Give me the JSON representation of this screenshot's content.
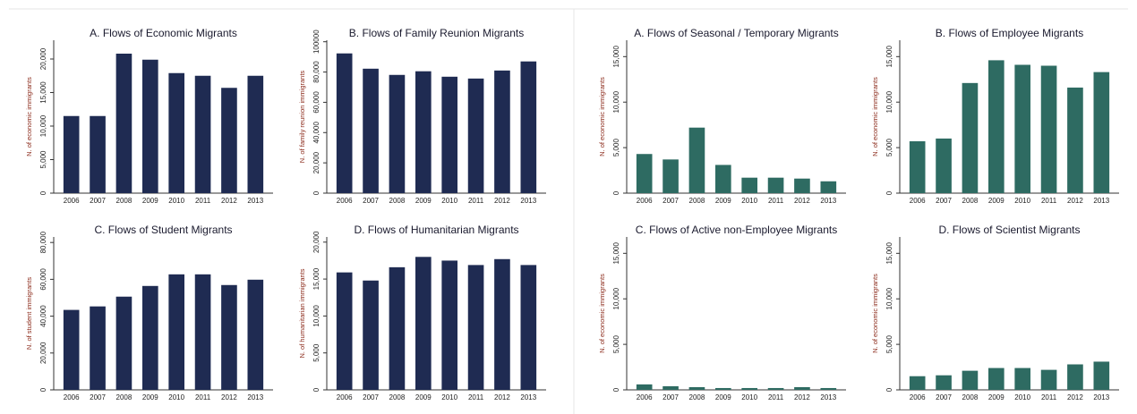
{
  "chart_data": [
    {
      "type": "bar",
      "title": "A. Flows of Economic Migrants",
      "y_label": "N. of economic immigrants",
      "color": "#1f2b52",
      "categories": [
        "2006",
        "2007",
        "2008",
        "2009",
        "2010",
        "2011",
        "2012",
        "2013"
      ],
      "values": [
        11500,
        11500,
        20800,
        19900,
        17900,
        17500,
        15700,
        17500
      ],
      "ylim": [
        0,
        22800
      ],
      "yticks": [
        0,
        {
          "value": 5000,
          "label": "5,000"
        },
        {
          "value": 10000,
          "label": "10,000"
        },
        {
          "value": 15000,
          "label": "15,000"
        },
        {
          "value": 20000,
          "label": "20,000"
        }
      ]
    },
    {
      "type": "bar",
      "title": "B. Flows of Family Reunion Migrants",
      "y_label": "N. of family reunion immigrants",
      "color": "#1f2b52",
      "categories": [
        "2006",
        "2007",
        "2008",
        "2009",
        "2010",
        "2011",
        "2012",
        "2013"
      ],
      "values": [
        92300,
        82200,
        78100,
        80500,
        76900,
        75700,
        81000,
        87000
      ],
      "ylim": [
        0,
        101000
      ],
      "yticks": [
        0,
        {
          "value": 20000,
          "label": "20,000"
        },
        {
          "value": 40000,
          "label": "40,000"
        },
        {
          "value": 60000,
          "label": "60,000"
        },
        {
          "value": 80000,
          "label": "80,000"
        },
        100000
      ]
    },
    {
      "type": "bar",
      "title": "C. Flows of Student Migrants",
      "y_label": "N. of student immigrants",
      "color": "#1f2b52",
      "categories": [
        "2006",
        "2007",
        "2008",
        "2009",
        "2010",
        "2011",
        "2012",
        "2013"
      ],
      "values": [
        43400,
        45300,
        50600,
        56400,
        62700,
        62700,
        56900,
        59800
      ],
      "ylim": [
        0,
        83000
      ],
      "yticks": [
        0,
        {
          "value": 20000,
          "label": "20,000"
        },
        {
          "value": 40000,
          "label": "40,000"
        },
        {
          "value": 60000,
          "label": "60,000"
        },
        {
          "value": 80000,
          "label": "80,000"
        }
      ]
    },
    {
      "type": "bar",
      "title": "D. Flows of Humanitarian Migrants",
      "y_label": "N. of humanitarian immigrants",
      "color": "#1f2b52",
      "categories": [
        "2006",
        "2007",
        "2008",
        "2009",
        "2010",
        "2011",
        "2012",
        "2013"
      ],
      "values": [
        15900,
        14800,
        16600,
        18000,
        17500,
        16900,
        17700,
        16900
      ],
      "ylim": [
        0,
        20700
      ],
      "yticks": [
        0,
        {
          "value": 5000,
          "label": "5,000"
        },
        {
          "value": 10000,
          "label": "10,000"
        },
        {
          "value": 15000,
          "label": "15,000"
        },
        {
          "value": 20000,
          "label": "20,000"
        }
      ]
    },
    {
      "type": "bar",
      "title": "A. Flows of Seasonal / Temporary Migrants",
      "y_label": "N. of economic immigrants",
      "color": "#2e6b62",
      "categories": [
        "2006",
        "2007",
        "2008",
        "2009",
        "2010",
        "2011",
        "2012",
        "2013"
      ],
      "values": [
        4300,
        3700,
        7200,
        3100,
        1700,
        1700,
        1600,
        1300
      ],
      "ylim": [
        0,
        16800
      ],
      "yticks": [
        0,
        {
          "value": 5000,
          "label": "5,000"
        },
        {
          "value": 10000,
          "label": "10,000"
        },
        {
          "value": 15000,
          "label": "15,000"
        }
      ]
    },
    {
      "type": "bar",
      "title": "B. Flows of Employee Migrants",
      "y_label": "N. of economic immigrants",
      "color": "#2e6b62",
      "categories": [
        "2006",
        "2007",
        "2008",
        "2009",
        "2010",
        "2011",
        "2012",
        "2013"
      ],
      "values": [
        5700,
        6000,
        12100,
        14600,
        14100,
        14000,
        11600,
        13300
      ],
      "ylim": [
        0,
        16800
      ],
      "yticks": [
        0,
        {
          "value": 5000,
          "label": "5,000"
        },
        {
          "value": 10000,
          "label": "10,000"
        },
        {
          "value": 15000,
          "label": "15,000"
        }
      ]
    },
    {
      "type": "bar",
      "title": "C. Flows of Active non-Employee Migrants",
      "y_label": "N. of economic immigrants",
      "color": "#2e6b62",
      "categories": [
        "2006",
        "2007",
        "2008",
        "2009",
        "2010",
        "2011",
        "2012",
        "2013"
      ],
      "values": [
        600,
        400,
        300,
        200,
        200,
        200,
        300,
        200
      ],
      "ylim": [
        0,
        16800
      ],
      "yticks": [
        0,
        {
          "value": 5000,
          "label": "5,000"
        },
        {
          "value": 10000,
          "label": "10,000"
        },
        {
          "value": 15000,
          "label": "15,000"
        }
      ]
    },
    {
      "type": "bar",
      "title": "D. Flows of Scientist Migrants",
      "y_label": "N. of economic immigrants",
      "color": "#2e6b62",
      "categories": [
        "2006",
        "2007",
        "2008",
        "2009",
        "2010",
        "2011",
        "2012",
        "2013"
      ],
      "values": [
        1500,
        1600,
        2100,
        2400,
        2400,
        2200,
        2800,
        3100
      ],
      "ylim": [
        0,
        16800
      ],
      "yticks": [
        0,
        {
          "value": 5000,
          "label": "5,000"
        },
        {
          "value": 10000,
          "label": "10,000"
        },
        {
          "value": 15000,
          "label": "15,000"
        }
      ]
    }
  ]
}
